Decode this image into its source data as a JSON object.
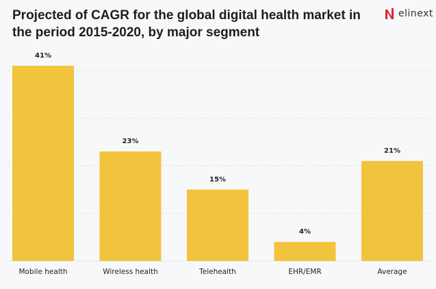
{
  "brand": {
    "name": "elinext",
    "accent": "#e3202f"
  },
  "chart_data": {
    "type": "bar",
    "title": "Projected of CAGR for the global digital health market in the period 2015-2020, by major segment",
    "categories": [
      "Mobile health",
      "Wireless health",
      "Telehealth",
      "EHR/EMR",
      "Average"
    ],
    "values": [
      41,
      23,
      15,
      4,
      21
    ],
    "data_labels": [
      "41%",
      "23%",
      "15%",
      "4%",
      "21%"
    ],
    "xlabel": "",
    "ylabel": "",
    "ylim": [
      0,
      45
    ],
    "grid": true,
    "gridlines": [
      10,
      20,
      30,
      40
    ],
    "bar_color": "#f2c43d"
  }
}
